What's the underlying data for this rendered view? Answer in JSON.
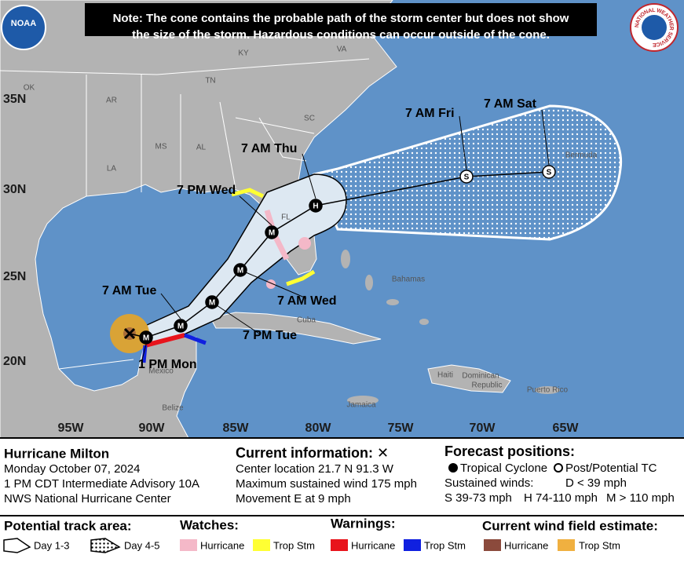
{
  "note": [
    "Note: The cone contains the probable path of the storm center but does not show",
    "the size of the storm. Hazardous conditions can occur outside of the cone."
  ],
  "logos": {
    "noaa": "NOAA",
    "nws": "NATIONAL WEATHER SERVICE"
  },
  "map": {
    "latitude_labels": [
      "35N",
      "30N",
      "25N",
      "20N"
    ],
    "longitude_labels": [
      "95W",
      "90W",
      "85W",
      "80W",
      "75W",
      "70W",
      "65W"
    ],
    "place_labels": [
      "OK",
      "AR",
      "TN",
      "KY",
      "VA",
      "SC",
      "MS",
      "AL",
      "LA",
      "FL",
      "Bahamas",
      "Cuba",
      "Mexico",
      "Belize",
      "Jamaica",
      "Haiti",
      "Dominican",
      "Republic",
      "Puerto Rico",
      "Bermuda"
    ],
    "forecast_labels": [
      "7 AM Sat",
      "7 AM Fri",
      "7 AM Thu",
      "7 PM Wed",
      "7 AM Wed",
      "7 AM Tue",
      "7 PM Tue",
      "1 PM Mon"
    ],
    "markers": [
      "M",
      "M",
      "M",
      "M",
      "M",
      "H",
      "S",
      "S"
    ]
  },
  "storm": {
    "name": "Hurricane Milton",
    "date": "Monday October 07, 2024",
    "advisory": "1 PM CDT Intermediate Advisory 10A",
    "agency": "NWS National Hurricane Center"
  },
  "current_information": {
    "title": "Current information: ✕",
    "lines": [
      "Center location 21.7 N 91.3 W",
      "Maximum sustained wind 175 mph",
      "Movement E at 9 mph"
    ]
  },
  "forecast_positions": {
    "title": "Forecast positions:",
    "tropical_cyclone": "Tropical Cyclone",
    "post_tc": "Post/Potential TC",
    "sustained_winds": "Sustained winds:",
    "d": "D < 39 mph",
    "s": "S 39-73 mph",
    "h": "H 74-110 mph",
    "m": "M > 110 mph"
  },
  "legend": {
    "track_area": {
      "title": "Potential track area:",
      "items": [
        "Day 1-3",
        "Day 4-5"
      ]
    },
    "watches": {
      "title": "Watches:",
      "items": [
        "Hurricane",
        "Trop Stm"
      ]
    },
    "warnings": {
      "title": "Warnings:",
      "items": [
        "Hurricane",
        "Trop Stm"
      ]
    },
    "wind_field": {
      "title": "Current wind field estimate:",
      "items": [
        "Hurricane",
        "Trop Stm"
      ]
    }
  }
}
